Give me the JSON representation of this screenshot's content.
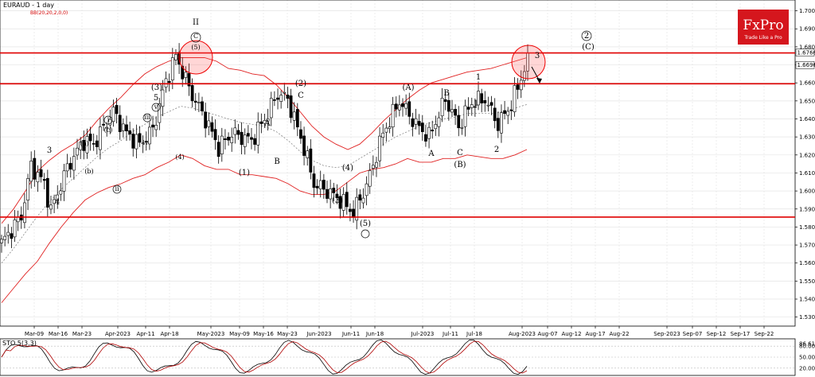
{
  "chart_data": {
    "type": "candlestick",
    "title": "EURAUD - 1 day",
    "subtitle": "BB(20,20,2,0,0)",
    "timeframe": "1 day",
    "x_tick_labels": [
      "Mar-09",
      "Mar-16",
      "Mar-23",
      "Apr-2023",
      "Apr-11",
      "Apr-18",
      "May-2023",
      "May-09",
      "May-16",
      "May-23",
      "Jun-2023",
      "Jun-11",
      "Jun-18",
      "Jul-2023",
      "Jul-11",
      "Jul-18",
      "Aug-2023",
      "Aug-07",
      "Aug-12",
      "Aug-17",
      "Aug-22",
      "Sep-2023",
      "Sep-07",
      "Sep-12",
      "Sep-17",
      "Sep-22"
    ],
    "y_tick_labels": [
      "1.70000",
      "1.69000",
      "1.68000",
      "1.67000",
      "1.66000",
      "1.65000",
      "1.64000",
      "1.63000",
      "1.62000",
      "1.61000",
      "1.60000",
      "1.59000",
      "1.58000",
      "1.57000",
      "1.56000",
      "1.55000",
      "1.54000",
      "1.53000"
    ],
    "ylim": [
      1.525,
      1.706
    ],
    "horizontal_levels": [
      1.6766,
      1.6595,
      1.5855
    ],
    "highlighted_prices": [
      "1.67665",
      "1.66969"
    ],
    "bollinger": {
      "upper": [
        1.582,
        1.59,
        1.6,
        1.611,
        1.617,
        1.622,
        1.626,
        1.631,
        1.639,
        1.646,
        1.652,
        1.659,
        1.665,
        1.669,
        1.672,
        1.674,
        1.674,
        1.674,
        1.672,
        1.668,
        1.667,
        1.665,
        1.664,
        1.659,
        1.652,
        1.644,
        1.636,
        1.63,
        1.626,
        1.623,
        1.626,
        1.632,
        1.639,
        1.645,
        1.651,
        1.656,
        1.66,
        1.662,
        1.664,
        1.666,
        1.667,
        1.668,
        1.67,
        1.672,
        1.674
      ],
      "middle": [
        1.56,
        1.568,
        1.577,
        1.586,
        1.594,
        1.601,
        1.607,
        1.613,
        1.619,
        1.624,
        1.628,
        1.633,
        1.637,
        1.641,
        1.644,
        1.647,
        1.646,
        1.644,
        1.642,
        1.64,
        1.638,
        1.637,
        1.636,
        1.633,
        1.628,
        1.622,
        1.617,
        1.614,
        1.613,
        1.614,
        1.618,
        1.622,
        1.626,
        1.63,
        1.633,
        1.636,
        1.638,
        1.64,
        1.641,
        1.643,
        1.643,
        1.643,
        1.644,
        1.646,
        1.648
      ],
      "lower": [
        1.538,
        1.546,
        1.554,
        1.561,
        1.571,
        1.58,
        1.588,
        1.595,
        1.599,
        1.602,
        1.604,
        1.607,
        1.609,
        1.613,
        1.616,
        1.62,
        1.618,
        1.614,
        1.612,
        1.612,
        1.609,
        1.609,
        1.608,
        1.607,
        1.604,
        1.6,
        1.598,
        1.598,
        1.6,
        1.605,
        1.61,
        1.612,
        1.613,
        1.615,
        1.618,
        1.616,
        1.616,
        1.618,
        1.618,
        1.62,
        1.619,
        1.618,
        1.618,
        1.62,
        1.623
      ]
    },
    "stochastic": {
      "label": "STO 5(3,3)",
      "tick_labels": [
        "86.61",
        "80.00",
        "50.00",
        "20.00"
      ]
    },
    "wave_labels": [
      "II",
      "C",
      "(5)",
      "(3)",
      "5",
      "iii",
      "v",
      "iv",
      "ii",
      "i",
      "(4)",
      "3",
      "(a)",
      "(c)",
      "(b)",
      "4",
      "(2)",
      "C",
      "A",
      "B",
      "(1)",
      "(4)",
      "(3)",
      "(5)",
      "1",
      "(A)",
      "B",
      "A",
      "1",
      "C",
      "(B)",
      "2",
      "3",
      "2",
      "(C)"
    ],
    "price_ranges_note": "candles are approximate"
  },
  "branding": {
    "logo": "FxPro",
    "tagline": "Trade Like a Pro"
  }
}
